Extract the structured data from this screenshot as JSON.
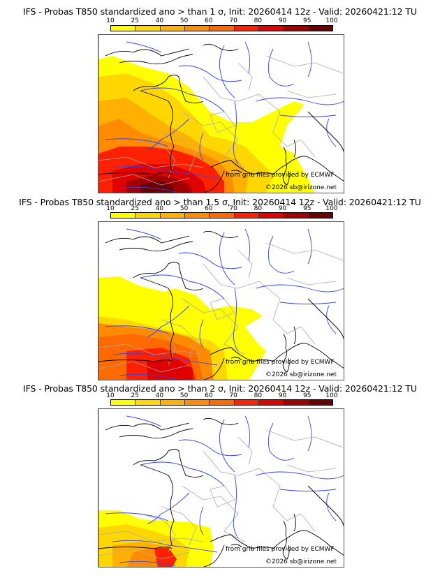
{
  "panels": [
    {
      "title": "IFS - Probas T850  standardized ano > than 1 σ, Init: 20260414 12z - Valid: 20260421:12 TU",
      "threshold_sigma": 1
    },
    {
      "title": "IFS - Probas T850  standardized ano > than 1.5 σ, Init: 20260414 12z - Valid: 20260421:12 TU",
      "threshold_sigma": 1.5
    },
    {
      "title": "IFS - Probas T850  standardized ano > than 2 σ, Init: 20260414 12z - Valid: 20260421:12 TU",
      "threshold_sigma": 2
    }
  ],
  "colorbar": {
    "ticks": [
      "10",
      "25",
      "40",
      "50",
      "60",
      "70",
      "80",
      "90",
      "95",
      "100"
    ],
    "colors": [
      "#ffff00",
      "#ffd700",
      "#ffb000",
      "#ff8c00",
      "#ff6a00",
      "#ff2000",
      "#e00000",
      "#a00000",
      "#6a0000"
    ]
  },
  "credits": {
    "source": "from grib files provided by ECMWF",
    "copyright": "©2026 sb@irizone.net"
  },
  "map_colors": {
    "coast": "#000000",
    "rivers": "#3344ee",
    "borders": "#aaaaaa"
  }
}
